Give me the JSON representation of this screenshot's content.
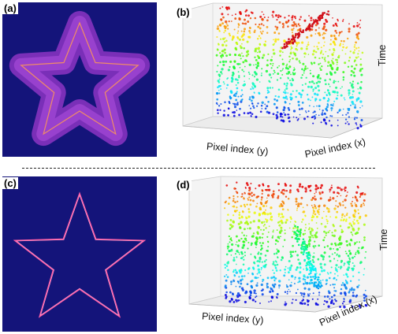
{
  "panels": [
    {
      "tag": "(a)",
      "kind": "thick-star-image"
    },
    {
      "tag": "(b)",
      "kind": "3d-scatter",
      "axis_y": "Pixel index (y)",
      "axis_x": "Pixel index (x)",
      "axis_t": "Time"
    },
    {
      "tag": "(c)",
      "kind": "thin-star-image"
    },
    {
      "tag": "(d)",
      "kind": "3d-scatter",
      "axis_y": "Pixel index (y)",
      "axis_x": "Pixel index (x)",
      "axis_t": "Time"
    }
  ],
  "colors": {
    "image_background": "#14147a",
    "star_fill": "#8c2fc8",
    "star_edge": "#ff7a4a",
    "thin_star": "#ff5fa8",
    "axis_box": "#cccccc"
  }
}
